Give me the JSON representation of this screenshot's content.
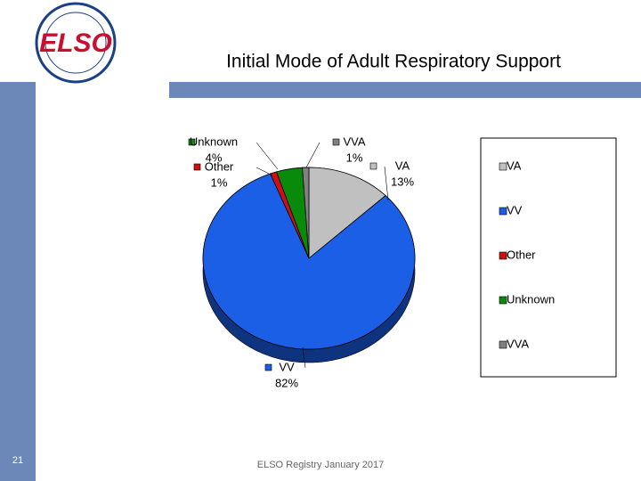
{
  "logo_text": "ELSO",
  "page_number": "21",
  "footer": "ELSO Registry January 2017",
  "chart_data": {
    "type": "pie",
    "title": "Initial Mode of Adult Respiratory Support",
    "categories": [
      "VA",
      "VV",
      "Other",
      "Unknown",
      "VVA"
    ],
    "values": [
      13,
      82,
      1,
      4,
      1
    ],
    "value_labels": [
      "13%",
      "82%",
      "1%",
      "4%",
      "1%"
    ],
    "colors": [
      "#c0c0c0",
      "#1a5fe6",
      "#d01010",
      "#0a8a0a",
      "#808080"
    ],
    "legend": "right"
  }
}
